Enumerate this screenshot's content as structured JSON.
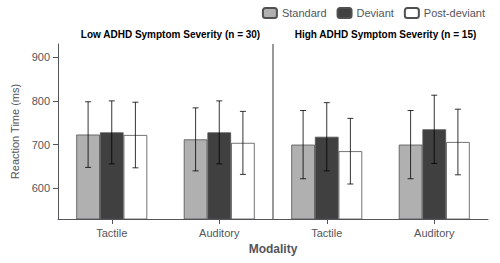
{
  "chart_data": {
    "type": "bar",
    "annotations": [
      "Low ADHD Symptom Severity (n = 30)",
      "High ADHD Symptom Severity (n = 15)"
    ],
    "xlabel": "Modality",
    "ylabel": "Reaction Time (ms)",
    "categories": [
      "Tactile",
      "Auditory",
      "Tactile",
      "Auditory"
    ],
    "series": [
      {
        "name": "Standard",
        "color": "#b0b0b0",
        "values": [
          723,
          712,
          700,
          700
        ],
        "errors": [
          75,
          72,
          78,
          78
        ]
      },
      {
        "name": "Deviant",
        "color": "#404040",
        "values": [
          728,
          728,
          718,
          735
        ],
        "errors": [
          72,
          72,
          78,
          78
        ]
      },
      {
        "name": "Post-deviant",
        "color": "#ffffff",
        "values": [
          722,
          704,
          685,
          706
        ],
        "errors": [
          75,
          72,
          75,
          75
        ]
      }
    ],
    "ylim": [
      530,
      930
    ],
    "yticks": [
      600,
      700,
      800,
      900
    ],
    "grid": false,
    "legend": "upper right"
  }
}
